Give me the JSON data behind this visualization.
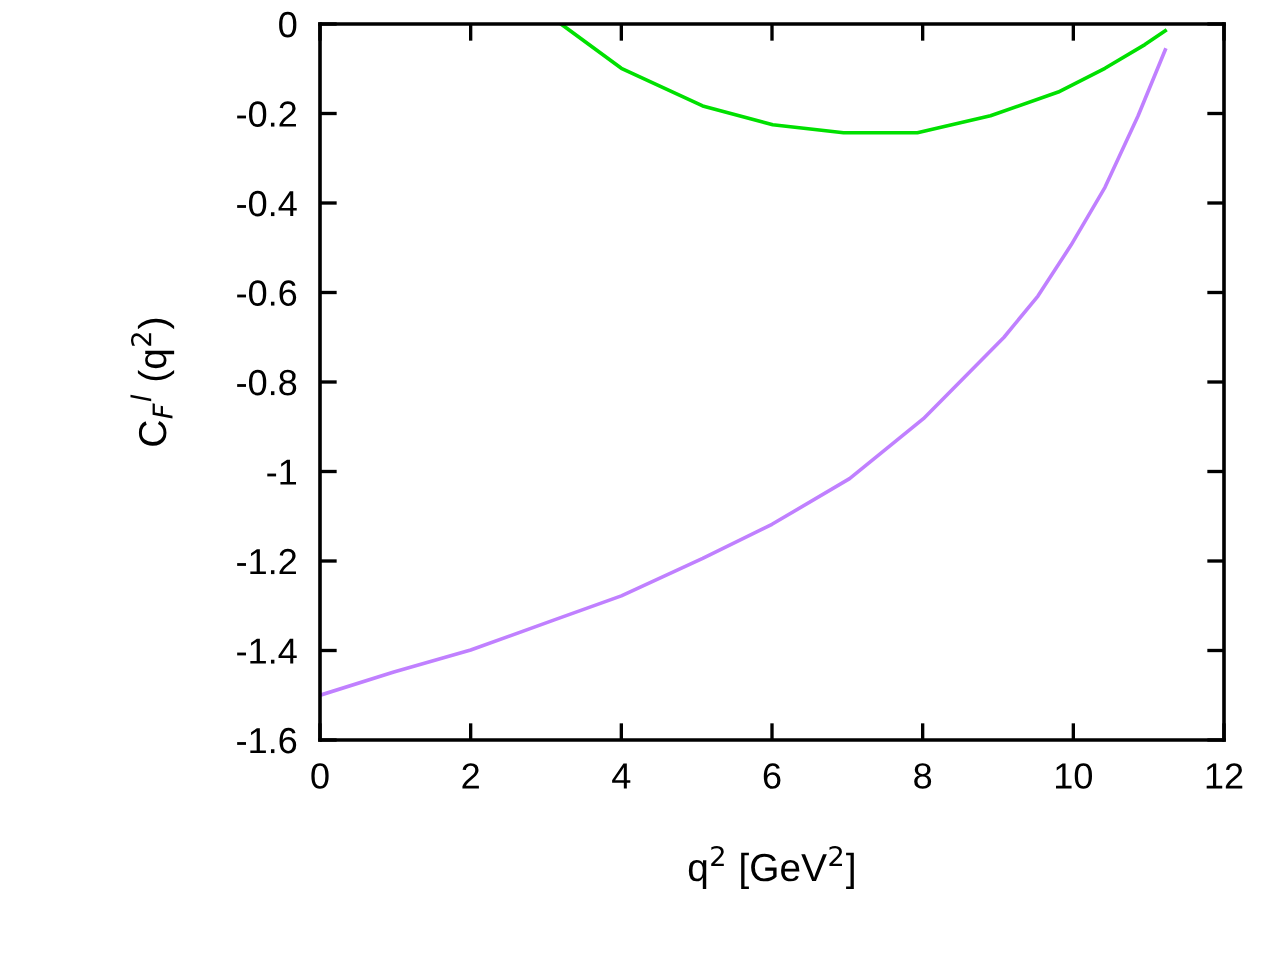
{
  "chart_data": {
    "type": "line",
    "xlabel": "q$^{2}$ [GeV$^{2}$]",
    "ylabel": "C$_{F}$$^{l}$ (q$^{2}$)",
    "xlim": [
      0,
      12
    ],
    "ylim": [
      -1.6,
      0
    ],
    "xticks": [
      0,
      2,
      4,
      6,
      8,
      10,
      12
    ],
    "yticks": [
      -1.6,
      -1.4,
      -1.2,
      -1,
      -0.8,
      -0.6,
      -0.4,
      -0.2,
      0
    ],
    "grid": false,
    "marker": "none",
    "line_style": "solid",
    "series": [
      {
        "color": "#c080ff",
        "x": [
          0,
          0.98,
          2.0,
          3.12,
          4.0,
          5.08,
          6.0,
          7.03,
          8.01,
          9.08,
          9.53,
          9.97,
          10.42,
          10.86,
          11.22
        ],
        "values": [
          -1.5,
          -1.448,
          -1.399,
          -1.331,
          -1.278,
          -1.194,
          -1.118,
          -1.016,
          -0.882,
          -0.7,
          -0.608,
          -0.494,
          -0.365,
          -0.205,
          -0.058
        ]
      },
      {
        "color": "#00e000",
        "x": [
          3.2,
          4.0,
          5.08,
          6.01,
          6.95,
          7.93,
          8.9,
          9.8,
          10.42,
          10.95,
          11.22
        ],
        "values": [
          0,
          -0.099,
          -0.183,
          -0.225,
          -0.243,
          -0.243,
          -0.205,
          -0.152,
          -0.099,
          -0.046,
          -0.015
        ]
      }
    ]
  }
}
